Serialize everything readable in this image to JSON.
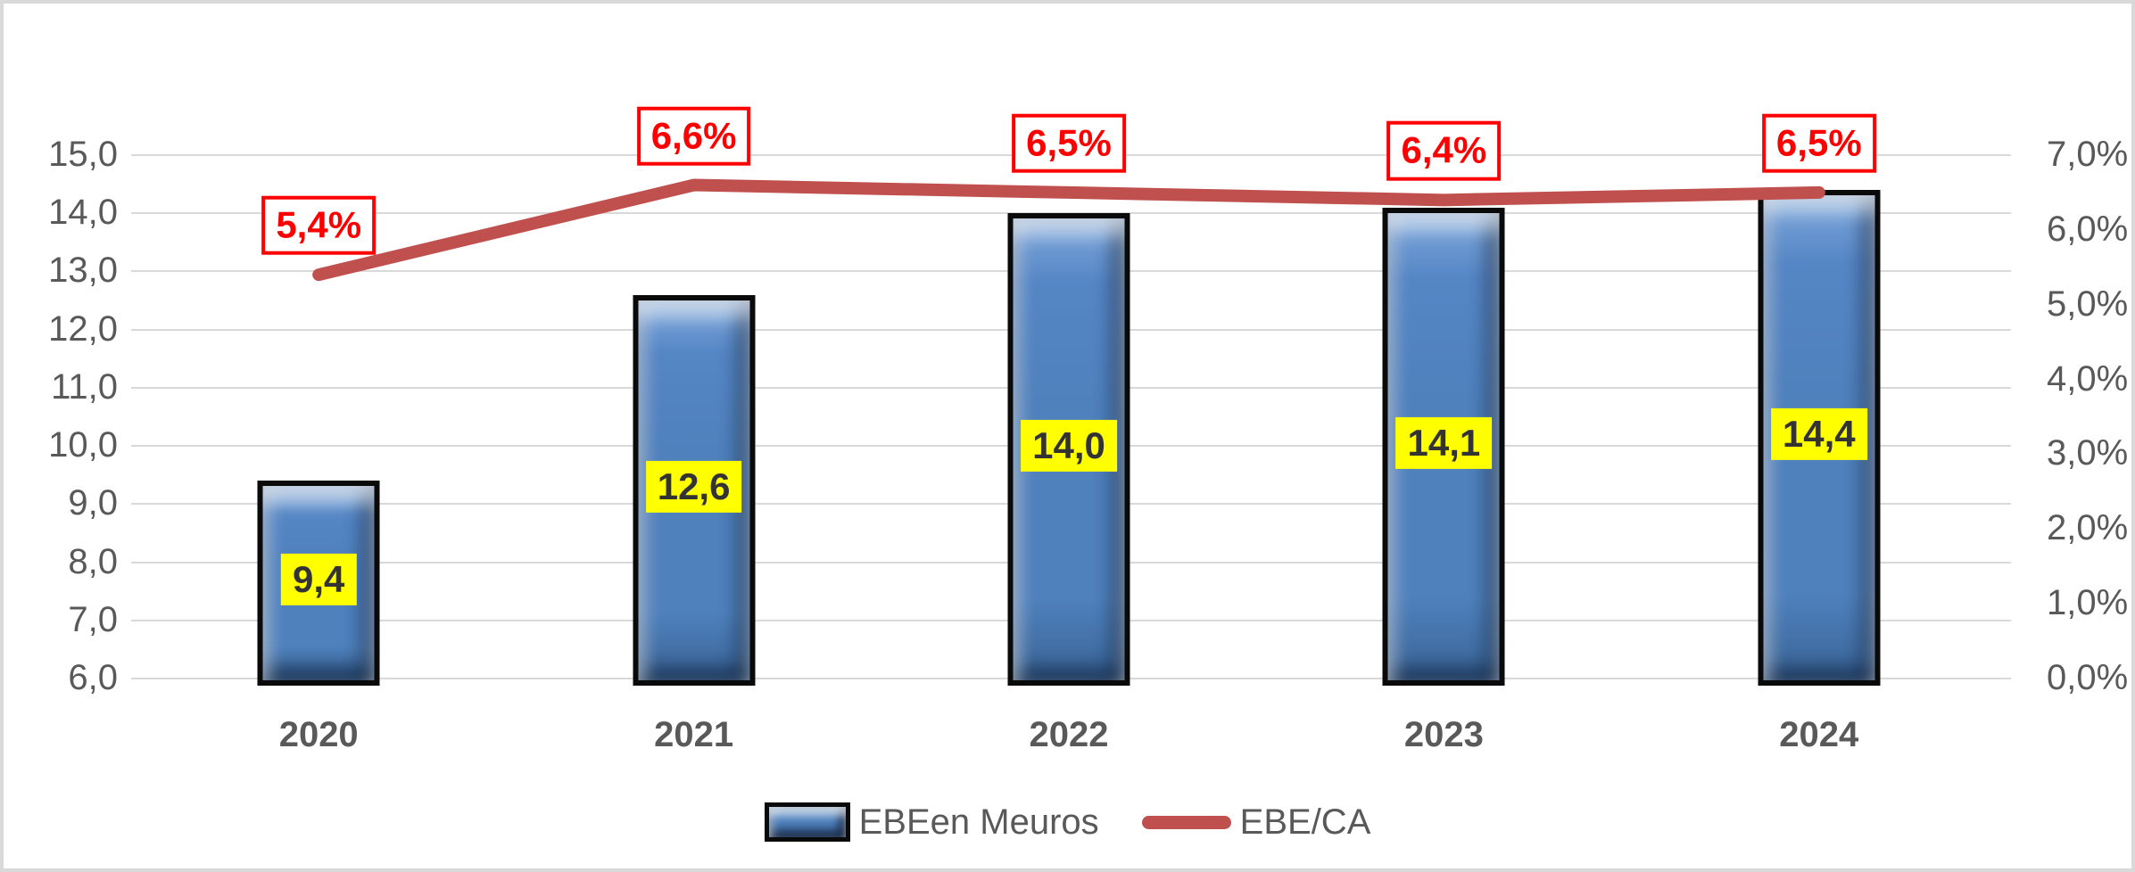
{
  "window": {
    "background": "#FFFFFF",
    "frame_color": "#D9D9D9"
  },
  "chart_data": {
    "type": "bar+line",
    "categories": [
      "2020",
      "2021",
      "2022",
      "2023",
      "2024"
    ],
    "series": [
      {
        "name": "EBEen Meuros",
        "type": "bar",
        "axis": "left",
        "values": [
          9.4,
          12.6,
          14.0,
          14.1,
          14.4
        ],
        "labels": [
          "9,4",
          "12,6",
          "14,0",
          "14,1",
          "14,4"
        ],
        "fill_color": "#4F81BD",
        "border_color": "#000000",
        "label_bg": "#FFFF00",
        "label_color": "#333333"
      },
      {
        "name": "EBE/CA",
        "type": "line",
        "axis": "right",
        "values": [
          5.4,
          6.6,
          6.5,
          6.4,
          6.5
        ],
        "labels": [
          "5,4%",
          "6,6%",
          "6,5%",
          "6,4%",
          "6,5%"
        ],
        "color": "#C0504D",
        "label_color": "#FF0000",
        "label_border": "#FF0000",
        "label_bg": "#FFFFFF"
      }
    ],
    "left_axis": {
      "min": 6,
      "max": 15,
      "step": 1,
      "tick_labels": [
        "6,0",
        "7,0",
        "8,0",
        "9,0",
        "10,0",
        "11,0",
        "12,0",
        "13,0",
        "14,0",
        "15,0"
      ]
    },
    "right_axis": {
      "min": 0,
      "max": 7,
      "step": 1,
      "tick_labels": [
        "0,0%",
        "1,0%",
        "2,0%",
        "3,0%",
        "4,0%",
        "5,0%",
        "6,0%",
        "7,0%"
      ]
    },
    "grid": true,
    "gridline_color": "#D9D9D9",
    "axis_text_color": "#595959",
    "legend_position": "bottom",
    "title": ""
  }
}
